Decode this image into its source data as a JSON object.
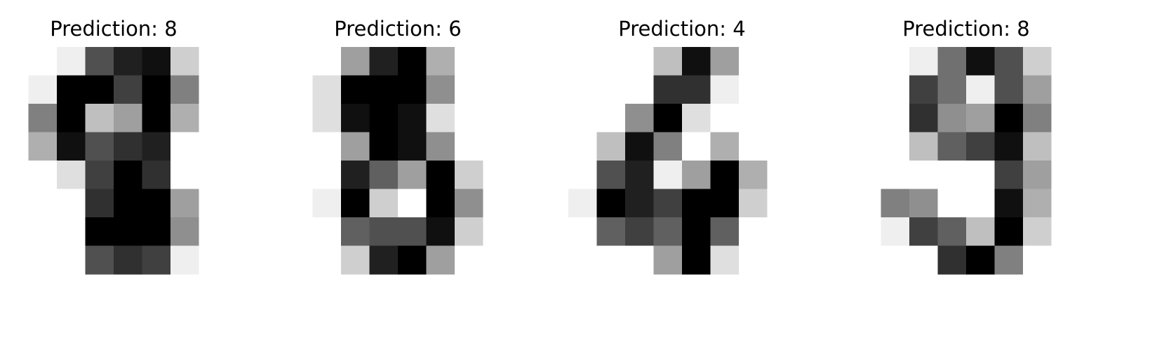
{
  "chart_data": [
    {
      "type": "heatmap",
      "title": "Prediction: 8",
      "colormap": "gray_r",
      "value_range": [
        0,
        16
      ],
      "values": [
        [
          0,
          0,
          1,
          11,
          14,
          15,
          3,
          0
        ],
        [
          0,
          1,
          16,
          16,
          12,
          16,
          8,
          0
        ],
        [
          0,
          8,
          16,
          4,
          6,
          16,
          5,
          0
        ],
        [
          0,
          5,
          15,
          11,
          13,
          14,
          0,
          0
        ],
        [
          0,
          0,
          2,
          12,
          16,
          13,
          0,
          0
        ],
        [
          0,
          0,
          0,
          13,
          16,
          16,
          6,
          0
        ],
        [
          0,
          0,
          0,
          16,
          16,
          16,
          7,
          0
        ],
        [
          0,
          0,
          0,
          11,
          13,
          12,
          1,
          0
        ]
      ]
    },
    {
      "type": "heatmap",
      "title": "Prediction: 6",
      "colormap": "gray_r",
      "value_range": [
        0,
        16
      ],
      "values": [
        [
          0,
          0,
          6,
          14,
          16,
          5,
          0,
          0
        ],
        [
          0,
          2,
          16,
          16,
          16,
          7,
          0,
          0
        ],
        [
          0,
          2,
          15,
          16,
          15,
          2,
          0,
          0
        ],
        [
          0,
          0,
          6,
          16,
          15,
          7,
          0,
          0
        ],
        [
          0,
          0,
          14,
          10,
          6,
          16,
          3,
          0
        ],
        [
          0,
          1,
          16,
          3,
          0,
          16,
          7,
          0
        ],
        [
          0,
          0,
          10,
          11,
          11,
          15,
          3,
          0
        ],
        [
          0,
          0,
          3,
          14,
          16,
          6,
          0,
          0
        ]
      ]
    },
    {
      "type": "heatmap",
      "title": "Prediction: 4",
      "colormap": "gray_r",
      "value_range": [
        0,
        16
      ],
      "values": [
        [
          0,
          0,
          0,
          4,
          15,
          6,
          0,
          0
        ],
        [
          0,
          0,
          0,
          13,
          13,
          1,
          0,
          0
        ],
        [
          0,
          0,
          7,
          16,
          2,
          0,
          0,
          0
        ],
        [
          0,
          4,
          15,
          8,
          0,
          5,
          0,
          0
        ],
        [
          0,
          11,
          14,
          1,
          6,
          16,
          5,
          0
        ],
        [
          1,
          16,
          14,
          12,
          16,
          16,
          3,
          0
        ],
        [
          0,
          10,
          12,
          10,
          16,
          10,
          0,
          0
        ],
        [
          0,
          0,
          0,
          6,
          16,
          2,
          0,
          0
        ]
      ]
    },
    {
      "type": "heatmap",
      "title": "Prediction: 8",
      "colormap": "gray_r",
      "value_range": [
        0,
        16
      ],
      "values": [
        [
          0,
          0,
          1,
          9,
          15,
          11,
          3,
          0
        ],
        [
          0,
          0,
          12,
          9,
          1,
          11,
          6,
          0
        ],
        [
          0,
          0,
          13,
          7,
          6,
          16,
          8,
          0
        ],
        [
          0,
          0,
          4,
          10,
          12,
          15,
          4,
          0
        ],
        [
          0,
          0,
          0,
          0,
          0,
          12,
          6,
          0
        ],
        [
          0,
          8,
          7,
          0,
          0,
          15,
          5,
          0
        ],
        [
          0,
          1,
          12,
          10,
          4,
          16,
          3,
          0
        ],
        [
          0,
          0,
          0,
          13,
          16,
          8,
          0,
          0
        ]
      ]
    }
  ]
}
